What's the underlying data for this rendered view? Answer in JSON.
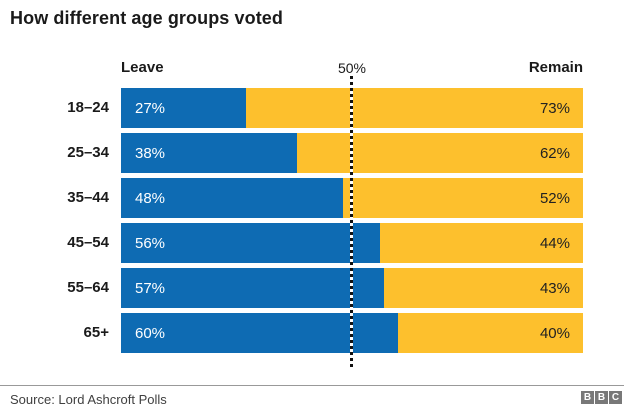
{
  "title": "How different age groups voted",
  "axis_headers": {
    "left": "Leave",
    "center": "50%",
    "right": "Remain"
  },
  "chart_data": {
    "type": "bar",
    "orientation": "horizontal",
    "stacked": true,
    "title": "How different age groups voted",
    "categories": [
      "18–24",
      "25–34",
      "35–44",
      "45–54",
      "55–64",
      "65+"
    ],
    "series": [
      {
        "name": "Leave",
        "color": "#0E6BB3",
        "values": [
          27,
          38,
          48,
          56,
          57,
          60
        ]
      },
      {
        "name": "Remain",
        "color": "#FDC02D",
        "values": [
          73,
          62,
          52,
          44,
          43,
          40
        ]
      }
    ],
    "value_suffix": "%",
    "xlim": [
      0,
      100
    ],
    "reference_line": {
      "value": 50,
      "label": "50%"
    },
    "grid": false,
    "legend_position": "top"
  },
  "colors": {
    "leave": "#0E6BB3",
    "remain": "#FDC02D",
    "leave_value_text": "#FFFFFF",
    "remain_value_text": "#222222"
  },
  "footer": {
    "source": "Source: Lord Ashcroft Polls",
    "logo_letters": [
      "B",
      "B",
      "C"
    ]
  }
}
